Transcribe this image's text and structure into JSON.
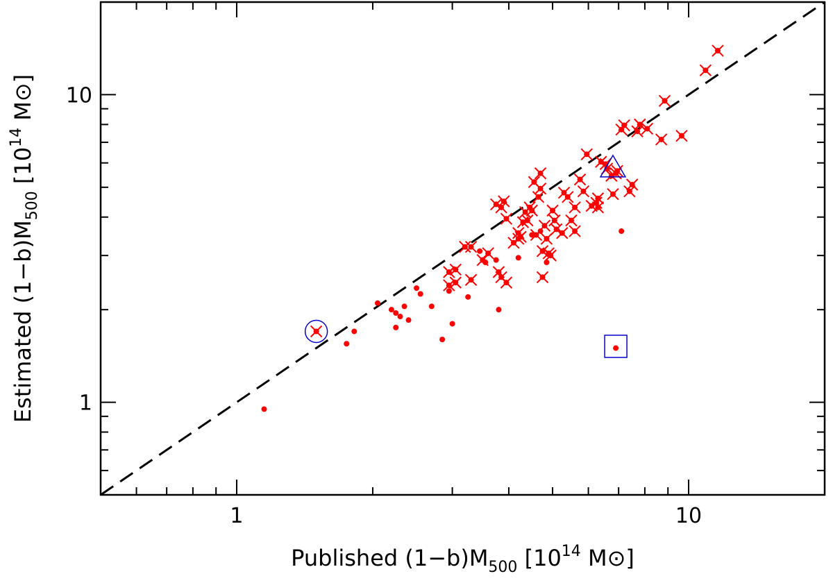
{
  "chart_data": {
    "type": "scatter",
    "xlabel": {
      "prefix": "Published  (1−b)M",
      "sub": "500",
      "mid": "  [10",
      "sup": "14",
      "suffix": " M⊙]"
    },
    "ylabel": {
      "prefix": "Estimated  (1−b)M",
      "sub": "500",
      "mid": "  [10",
      "sup": "14",
      "suffix": " M⊙]"
    },
    "xscale": "log",
    "yscale": "log",
    "xlim": [
      0.5,
      20
    ],
    "ylim": [
      0.5,
      20
    ],
    "x_ticks": [
      {
        "value": 1,
        "label": "1"
      },
      {
        "value": 10,
        "label": "10"
      }
    ],
    "y_ticks": [
      {
        "value": 1,
        "label": "1"
      },
      {
        "value": 10,
        "label": "10"
      }
    ],
    "grid": false,
    "reference_line": {
      "style": "dashed",
      "color": "#000000",
      "from": [
        0.5,
        0.5
      ],
      "to": [
        20,
        20
      ]
    },
    "colors": {
      "points": "#ff0000",
      "markers": "#0000cc",
      "line": "#000000"
    },
    "crossed_points": [
      [
        3.2,
        3.2
      ],
      [
        3.3,
        3.2
      ],
      [
        3.5,
        2.9
      ],
      [
        3.6,
        3.05
      ],
      [
        3.75,
        4.4
      ],
      [
        3.85,
        4.3
      ],
      [
        3.85,
        2.55
      ],
      [
        3.8,
        2.65
      ],
      [
        3.95,
        3.95
      ],
      [
        3.9,
        4.5
      ],
      [
        3.95,
        2.45
      ],
      [
        4.1,
        3.3
      ],
      [
        4.2,
        3.55
      ],
      [
        4.25,
        3.45
      ],
      [
        4.3,
        3.85
      ],
      [
        4.35,
        4.15
      ],
      [
        4.4,
        3.9
      ],
      [
        4.45,
        4.3
      ],
      [
        4.5,
        4.2
      ],
      [
        4.55,
        5.2
      ],
      [
        4.6,
        3.5
      ],
      [
        4.65,
        4.65
      ],
      [
        4.7,
        4.95
      ],
      [
        4.75,
        2.55
      ],
      [
        4.7,
        5.55
      ],
      [
        4.75,
        3.1
      ],
      [
        4.8,
        3.75
      ],
      [
        4.85,
        3.4
      ],
      [
        4.9,
        3.05
      ],
      [
        4.95,
        3.0
      ],
      [
        5.0,
        4.2
      ],
      [
        5.05,
        3.9
      ],
      [
        5.1,
        3.65
      ],
      [
        5.25,
        3.55
      ],
      [
        5.3,
        4.8
      ],
      [
        5.4,
        4.65
      ],
      [
        5.5,
        3.9
      ],
      [
        5.6,
        4.3
      ],
      [
        5.75,
        5.3
      ],
      [
        5.85,
        4.85
      ],
      [
        5.95,
        6.4
      ],
      [
        6.1,
        4.35
      ],
      [
        6.25,
        4.45
      ],
      [
        6.3,
        4.3
      ],
      [
        6.4,
        6.05
      ],
      [
        6.55,
        5.95
      ],
      [
        6.6,
        5.75
      ],
      [
        6.75,
        5.45
      ],
      [
        6.8,
        4.75
      ],
      [
        6.9,
        5.55
      ],
      [
        7.1,
        7.7
      ],
      [
        7.2,
        7.95
      ],
      [
        7.4,
        4.85
      ],
      [
        7.5,
        5.1
      ],
      [
        7.7,
        7.6
      ],
      [
        7.8,
        8.0
      ],
      [
        8.1,
        7.75
      ],
      [
        8.7,
        7.15
      ],
      [
        8.85,
        9.55
      ],
      [
        9.65,
        7.35
      ],
      [
        10.9,
        12.0
      ],
      [
        11.6,
        13.9
      ],
      [
        6.95,
        5.65
      ],
      [
        1.5,
        1.7
      ],
      [
        2.95,
        2.4
      ],
      [
        3.05,
        2.45
      ],
      [
        3.3,
        2.5
      ],
      [
        4.2,
        3.4
      ],
      [
        5.6,
        3.6
      ],
      [
        6.3,
        4.6
      ],
      [
        3.05,
        2.7
      ],
      [
        2.95,
        2.65
      ]
    ],
    "dot_points": [
      [
        1.15,
        0.95
      ],
      [
        1.75,
        1.55
      ],
      [
        1.82,
        1.7
      ],
      [
        2.05,
        2.1
      ],
      [
        2.2,
        2.0
      ],
      [
        2.25,
        1.95
      ],
      [
        2.3,
        1.9
      ],
      [
        2.25,
        1.75
      ],
      [
        2.35,
        2.05
      ],
      [
        2.4,
        1.85
      ],
      [
        2.5,
        2.35
      ],
      [
        2.55,
        2.25
      ],
      [
        2.7,
        2.05
      ],
      [
        2.95,
        2.3
      ],
      [
        3.0,
        1.8
      ],
      [
        3.05,
        2.7
      ],
      [
        3.25,
        2.2
      ],
      [
        3.45,
        3.1
      ],
      [
        3.55,
        2.85
      ],
      [
        3.75,
        2.9
      ],
      [
        3.8,
        2.0
      ],
      [
        4.2,
        2.95
      ],
      [
        4.5,
        3.5
      ],
      [
        4.7,
        3.6
      ],
      [
        4.85,
        2.85
      ],
      [
        2.85,
        1.6
      ],
      [
        6.9,
        1.5
      ],
      [
        7.1,
        3.6
      ]
    ],
    "circle_marker": [
      1.5,
      1.7
    ],
    "triangle_marker": [
      6.8,
      5.75
    ],
    "square_marker": [
      6.9,
      1.52
    ]
  }
}
